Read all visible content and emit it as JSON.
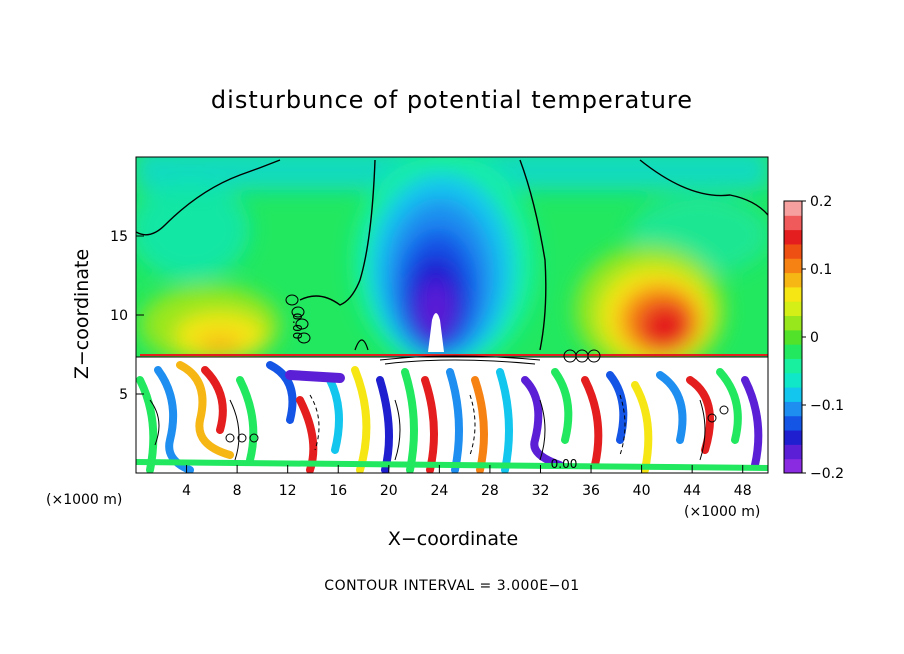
{
  "chart_data": {
    "type": "heatmap",
    "title": "disturbunce of potential temperature",
    "xlabel": "X−coordinate",
    "ylabel": "Z−coordinate",
    "x_unit": "(×1000 m)",
    "y_unit": "(×1000 m)",
    "xlim": [
      0,
      50
    ],
    "ylim": [
      0,
      20
    ],
    "x_ticks": [
      "4",
      "8",
      "12",
      "16",
      "20",
      "24",
      "28",
      "32",
      "36",
      "40",
      "44",
      "48"
    ],
    "x_tick_values": [
      4,
      8,
      12,
      16,
      20,
      24,
      28,
      32,
      36,
      40,
      44,
      48
    ],
    "y_ticks": [
      "5",
      "10",
      "15"
    ],
    "y_tick_values": [
      5,
      10,
      15
    ],
    "colorbar": {
      "range": [
        -0.2,
        0.2
      ],
      "tick_labels": [
        "0.2",
        "0.1",
        "0",
        "−0.1",
        "−0.2"
      ],
      "tick_values": [
        0.2,
        0.1,
        0,
        -0.1,
        -0.2
      ],
      "colors": [
        "#8a2be2",
        "#5b1fd6",
        "#1f1fd0",
        "#1455e6",
        "#1e8ff0",
        "#12c6ee",
        "#10e6c8",
        "#18f0a0",
        "#22e860",
        "#52e22a",
        "#98e61c",
        "#d4ee18",
        "#f6e614",
        "#f6b614",
        "#f68214",
        "#ee5014",
        "#e41e1e",
        "#f05a5a",
        "#f6a0a0"
      ]
    },
    "contour_labels": [
      "0.00",
      "0.00",
      "0.00"
    ],
    "footer": "CONTOUR INTERVAL = 3.000E−01"
  }
}
